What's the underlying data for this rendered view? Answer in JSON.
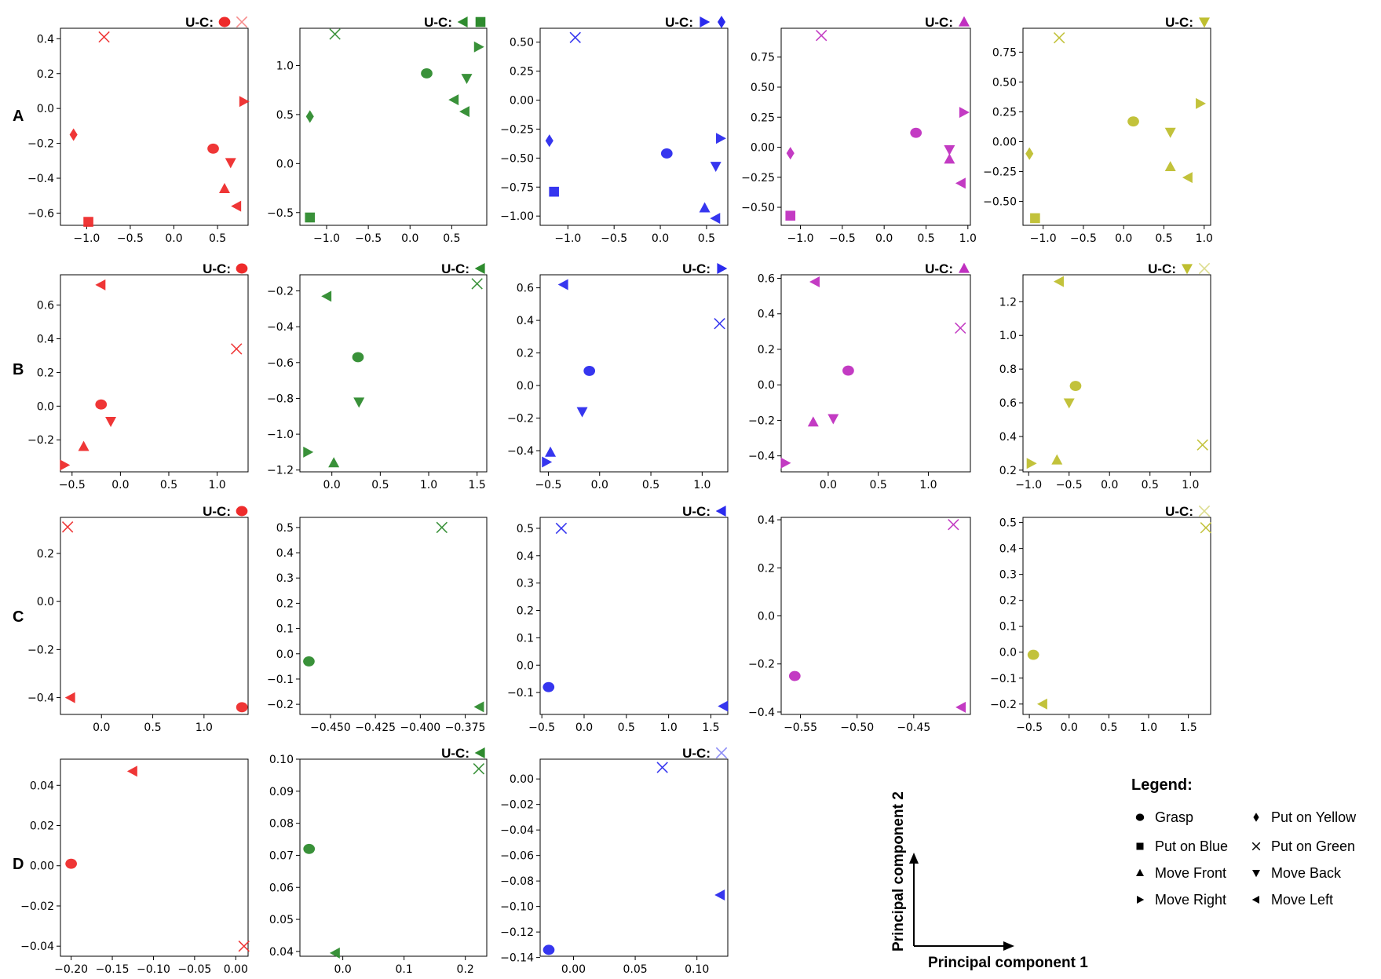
{
  "row_labels": [
    "A",
    "B",
    "C",
    "D"
  ],
  "uc_label": "U-C:",
  "colors": {
    "red": "#ee2b2b",
    "green": "#2e8b2e",
    "blue": "#2b2bee",
    "magenta": "#c030c0",
    "yellow": "#bfbf30"
  },
  "legend": {
    "title": "Legend:",
    "items": [
      {
        "marker": "circle",
        "label": "Grasp"
      },
      {
        "marker": "diamond",
        "label": "Put on Yellow"
      },
      {
        "marker": "square",
        "label": "Put on Blue"
      },
      {
        "marker": "x",
        "label": "Put on Green"
      },
      {
        "marker": "triangle-up",
        "label": "Move Front"
      },
      {
        "marker": "triangle-down",
        "label": "Move Back"
      },
      {
        "marker": "triangle-right",
        "label": "Move Right"
      },
      {
        "marker": "triangle-left",
        "label": "Move Left"
      }
    ]
  },
  "axes_guide": {
    "xlabel": "Principal component 1",
    "ylabel": "Principal component 2"
  },
  "chart_data": [
    {
      "row": "A",
      "col": 1,
      "type": "scatter",
      "color": "red",
      "xticks": [
        -1.0,
        -0.5,
        0.0,
        0.5
      ],
      "yticks": [
        -0.6,
        -0.4,
        -0.2,
        0.0,
        0.2,
        0.4
      ],
      "xlim": [
        -1.3,
        0.85
      ],
      "ylim": [
        -0.67,
        0.46
      ],
      "uc": [
        {
          "marker": "circle"
        },
        {
          "marker": "x",
          "faded": true
        }
      ],
      "points": [
        {
          "marker": "x",
          "x": -0.8,
          "y": 0.41
        },
        {
          "marker": "triangle-right",
          "x": 0.8,
          "y": 0.04
        },
        {
          "marker": "diamond",
          "x": -1.15,
          "y": -0.15
        },
        {
          "marker": "circle",
          "x": 0.45,
          "y": -0.23
        },
        {
          "marker": "triangle-down",
          "x": 0.65,
          "y": -0.31
        },
        {
          "marker": "triangle-up",
          "x": 0.58,
          "y": -0.46
        },
        {
          "marker": "triangle-left",
          "x": 0.72,
          "y": -0.56
        },
        {
          "marker": "square",
          "x": -0.98,
          "y": -0.65
        }
      ]
    },
    {
      "row": "A",
      "col": 2,
      "type": "scatter",
      "color": "green",
      "xticks": [
        -1.0,
        -0.5,
        0.0,
        0.5
      ],
      "yticks": [
        -0.5,
        0.0,
        0.5,
        1.0
      ],
      "xlim": [
        -1.32,
        0.92
      ],
      "ylim": [
        -0.63,
        1.38
      ],
      "uc": [
        {
          "marker": "triangle-left"
        },
        {
          "marker": "square"
        }
      ],
      "points": [
        {
          "marker": "x",
          "x": -0.9,
          "y": 1.32
        },
        {
          "marker": "triangle-right",
          "x": 0.82,
          "y": 1.19
        },
        {
          "marker": "circle",
          "x": 0.2,
          "y": 0.92
        },
        {
          "marker": "triangle-down",
          "x": 0.68,
          "y": 0.87
        },
        {
          "marker": "triangle-left",
          "x": 0.53,
          "y": 0.65
        },
        {
          "marker": "triangle-left",
          "x": 0.66,
          "y": 0.53
        },
        {
          "marker": "diamond",
          "x": -1.2,
          "y": 0.48
        },
        {
          "marker": "square",
          "x": -1.2,
          "y": -0.55
        }
      ]
    },
    {
      "row": "A",
      "col": 3,
      "type": "scatter",
      "color": "blue",
      "xticks": [
        -1.0,
        -0.5,
        0.0,
        0.5
      ],
      "yticks": [
        -1.0,
        -0.75,
        -0.5,
        -0.25,
        0.0,
        0.25,
        0.5
      ],
      "xlim": [
        -1.3,
        0.73
      ],
      "ylim": [
        -1.08,
        0.62
      ],
      "uc": [
        {
          "marker": "triangle-right"
        },
        {
          "marker": "diamond"
        }
      ],
      "points": [
        {
          "marker": "x",
          "x": -0.92,
          "y": 0.54
        },
        {
          "marker": "diamond",
          "x": -1.2,
          "y": -0.35
        },
        {
          "marker": "triangle-right",
          "x": 0.65,
          "y": -0.33
        },
        {
          "marker": "circle",
          "x": 0.07,
          "y": -0.46
        },
        {
          "marker": "triangle-down",
          "x": 0.6,
          "y": -0.57
        },
        {
          "marker": "square",
          "x": -1.15,
          "y": -0.79
        },
        {
          "marker": "triangle-up",
          "x": 0.48,
          "y": -0.93
        },
        {
          "marker": "triangle-left",
          "x": 0.6,
          "y": -1.02
        }
      ]
    },
    {
      "row": "A",
      "col": 4,
      "type": "scatter",
      "color": "magenta",
      "xticks": [
        -1.0,
        -0.5,
        0.0,
        0.5,
        1.0
      ],
      "yticks": [
        -0.5,
        -0.25,
        0.0,
        0.25,
        0.5,
        0.75
      ],
      "xlim": [
        -1.23,
        1.03
      ],
      "ylim": [
        -0.65,
        0.99
      ],
      "uc": [
        {
          "marker": "triangle-up"
        }
      ],
      "points": [
        {
          "marker": "x",
          "x": -0.75,
          "y": 0.93
        },
        {
          "marker": "triangle-right",
          "x": 0.95,
          "y": 0.29
        },
        {
          "marker": "circle",
          "x": 0.38,
          "y": 0.12
        },
        {
          "marker": "triangle-down",
          "x": 0.78,
          "y": -0.02
        },
        {
          "marker": "triangle-up",
          "x": 0.78,
          "y": -0.1
        },
        {
          "marker": "diamond",
          "x": -1.12,
          "y": -0.05
        },
        {
          "marker": "triangle-left",
          "x": 0.92,
          "y": -0.3
        },
        {
          "marker": "square",
          "x": -1.12,
          "y": -0.57
        }
      ]
    },
    {
      "row": "A",
      "col": 5,
      "type": "scatter",
      "color": "yellow",
      "xticks": [
        -1.0,
        -0.5,
        0.0,
        0.5,
        1.0
      ],
      "yticks": [
        -0.5,
        -0.25,
        0.0,
        0.25,
        0.5,
        0.75
      ],
      "xlim": [
        -1.25,
        1.08
      ],
      "ylim": [
        -0.7,
        0.95
      ],
      "uc": [
        {
          "marker": "triangle-down"
        }
      ],
      "points": [
        {
          "marker": "x",
          "x": -0.8,
          "y": 0.87
        },
        {
          "marker": "triangle-right",
          "x": 0.95,
          "y": 0.32
        },
        {
          "marker": "circle",
          "x": 0.12,
          "y": 0.17
        },
        {
          "marker": "triangle-down",
          "x": 0.58,
          "y": 0.08
        },
        {
          "marker": "diamond",
          "x": -1.17,
          "y": -0.1
        },
        {
          "marker": "triangle-up",
          "x": 0.58,
          "y": -0.21
        },
        {
          "marker": "triangle-left",
          "x": 0.8,
          "y": -0.3
        },
        {
          "marker": "square",
          "x": -1.1,
          "y": -0.64
        }
      ]
    },
    {
      "row": "B",
      "col": 1,
      "type": "scatter",
      "color": "red",
      "xticks": [
        -0.5,
        0.0,
        0.5,
        1.0
      ],
      "yticks": [
        -0.2,
        0.0,
        0.2,
        0.4,
        0.6
      ],
      "xlim": [
        -0.62,
        1.32
      ],
      "ylim": [
        -0.39,
        0.78
      ],
      "uc": [
        {
          "marker": "circle"
        }
      ],
      "points": [
        {
          "marker": "triangle-left",
          "x": -0.2,
          "y": 0.72
        },
        {
          "marker": "x",
          "x": 1.2,
          "y": 0.34
        },
        {
          "marker": "circle",
          "x": -0.2,
          "y": 0.01
        },
        {
          "marker": "triangle-down",
          "x": -0.1,
          "y": -0.09
        },
        {
          "marker": "triangle-up",
          "x": -0.38,
          "y": -0.24
        },
        {
          "marker": "triangle-right",
          "x": -0.58,
          "y": -0.35
        }
      ]
    },
    {
      "row": "B",
      "col": 2,
      "type": "scatter",
      "color": "green",
      "xticks": [
        0.0,
        0.5,
        1.0,
        1.5
      ],
      "yticks": [
        -1.2,
        -1.0,
        -0.8,
        -0.6,
        -0.4,
        -0.2
      ],
      "xlim": [
        -0.33,
        1.6
      ],
      "ylim": [
        -1.21,
        -0.11
      ],
      "uc": [
        {
          "marker": "triangle-left"
        }
      ],
      "points": [
        {
          "marker": "x",
          "x": 1.5,
          "y": -0.16
        },
        {
          "marker": "triangle-left",
          "x": -0.05,
          "y": -0.23
        },
        {
          "marker": "circle",
          "x": 0.27,
          "y": -0.57
        },
        {
          "marker": "triangle-down",
          "x": 0.28,
          "y": -0.82
        },
        {
          "marker": "triangle-right",
          "x": -0.25,
          "y": -1.1
        },
        {
          "marker": "triangle-up",
          "x": 0.02,
          "y": -1.16
        }
      ]
    },
    {
      "row": "B",
      "col": 3,
      "type": "scatter",
      "color": "blue",
      "xticks": [
        -0.5,
        0.0,
        0.5,
        1.0
      ],
      "yticks": [
        -0.4,
        -0.2,
        0.0,
        0.2,
        0.4,
        0.6
      ],
      "xlim": [
        -0.58,
        1.25
      ],
      "ylim": [
        -0.53,
        0.68
      ],
      "uc": [
        {
          "marker": "triangle-right"
        }
      ],
      "points": [
        {
          "marker": "triangle-left",
          "x": -0.35,
          "y": 0.62
        },
        {
          "marker": "x",
          "x": 1.17,
          "y": 0.38
        },
        {
          "marker": "circle",
          "x": -0.1,
          "y": 0.09
        },
        {
          "marker": "triangle-down",
          "x": -0.17,
          "y": -0.16
        },
        {
          "marker": "triangle-up",
          "x": -0.48,
          "y": -0.41
        },
        {
          "marker": "triangle-right",
          "x": -0.52,
          "y": -0.47
        }
      ]
    },
    {
      "row": "B",
      "col": 4,
      "type": "scatter",
      "color": "magenta",
      "xticks": [
        0.0,
        0.5,
        1.0
      ],
      "yticks": [
        -0.4,
        -0.2,
        0.0,
        0.2,
        0.4,
        0.6
      ],
      "xlim": [
        -0.47,
        1.42
      ],
      "ylim": [
        -0.49,
        0.62
      ],
      "uc": [
        {
          "marker": "triangle-up"
        }
      ],
      "points": [
        {
          "marker": "triangle-left",
          "x": -0.13,
          "y": 0.58
        },
        {
          "marker": "x",
          "x": 1.32,
          "y": 0.32
        },
        {
          "marker": "circle",
          "x": 0.2,
          "y": 0.08
        },
        {
          "marker": "triangle-up",
          "x": -0.15,
          "y": -0.21
        },
        {
          "marker": "triangle-down",
          "x": 0.05,
          "y": -0.19
        },
        {
          "marker": "triangle-right",
          "x": -0.43,
          "y": -0.44
        }
      ]
    },
    {
      "row": "B",
      "col": 5,
      "type": "scatter",
      "color": "yellow",
      "xticks": [
        -1.0,
        -0.5,
        0.0,
        0.5,
        1.0
      ],
      "yticks": [
        0.2,
        0.4,
        0.6,
        0.8,
        1.0,
        1.2
      ],
      "xlim": [
        -1.07,
        1.25
      ],
      "ylim": [
        0.19,
        1.36
      ],
      "uc": [
        {
          "marker": "triangle-down"
        },
        {
          "marker": "x",
          "faded": true
        }
      ],
      "points": [
        {
          "marker": "triangle-left",
          "x": -0.62,
          "y": 1.32
        },
        {
          "marker": "circle",
          "x": -0.42,
          "y": 0.7
        },
        {
          "marker": "triangle-down",
          "x": -0.5,
          "y": 0.6
        },
        {
          "marker": "x",
          "x": 1.15,
          "y": 0.35
        },
        {
          "marker": "triangle-up",
          "x": -0.65,
          "y": 0.26
        },
        {
          "marker": "triangle-right",
          "x": -0.97,
          "y": 0.24
        }
      ]
    },
    {
      "row": "C",
      "col": 1,
      "type": "scatter",
      "color": "red",
      "xticks": [
        0.0,
        0.5,
        1.0
      ],
      "yticks": [
        -0.4,
        -0.2,
        0.0,
        0.2
      ],
      "xlim": [
        -0.4,
        1.43
      ],
      "ylim": [
        -0.47,
        0.35
      ],
      "uc": [
        {
          "marker": "circle"
        }
      ],
      "points": [
        {
          "marker": "x",
          "x": -0.33,
          "y": 0.31
        },
        {
          "marker": "triangle-left",
          "x": -0.3,
          "y": -0.4
        },
        {
          "marker": "circle",
          "x": 1.37,
          "y": -0.44
        }
      ]
    },
    {
      "row": "C",
      "col": 2,
      "type": "scatter",
      "color": "green",
      "xticks": [
        -0.45,
        -0.425,
        -0.4,
        -0.375
      ],
      "yticks": [
        -0.2,
        -0.1,
        0.0,
        0.1,
        0.2,
        0.3,
        0.4,
        0.5
      ],
      "xlim": [
        -0.467,
        -0.363
      ],
      "ylim": [
        -0.24,
        0.54
      ],
      "uc": [],
      "points": [
        {
          "marker": "x",
          "x": -0.388,
          "y": 0.5
        },
        {
          "marker": "circle",
          "x": -0.462,
          "y": -0.03
        },
        {
          "marker": "triangle-left",
          "x": -0.367,
          "y": -0.21
        }
      ]
    },
    {
      "row": "C",
      "col": 3,
      "type": "scatter",
      "color": "blue",
      "xticks": [
        -0.5,
        0.0,
        0.5,
        1.0,
        1.5
      ],
      "yticks": [
        -0.1,
        0.0,
        0.1,
        0.2,
        0.3,
        0.4,
        0.5
      ],
      "xlim": [
        -0.52,
        1.7
      ],
      "ylim": [
        -0.18,
        0.54
      ],
      "uc": [
        {
          "marker": "triangle-left"
        }
      ],
      "points": [
        {
          "marker": "x",
          "x": -0.27,
          "y": 0.5
        },
        {
          "marker": "circle",
          "x": -0.42,
          "y": -0.08
        },
        {
          "marker": "triangle-left",
          "x": 1.65,
          "y": -0.15
        }
      ]
    },
    {
      "row": "C",
      "col": 4,
      "type": "scatter",
      "color": "magenta",
      "xticks": [
        -0.55,
        -0.5,
        -0.45
      ],
      "yticks": [
        -0.4,
        -0.2,
        0.0,
        0.2,
        0.4
      ],
      "xlim": [
        -0.567,
        -0.4
      ],
      "ylim": [
        -0.41,
        0.41
      ],
      "uc": [],
      "points": [
        {
          "marker": "x",
          "x": -0.415,
          "y": 0.38
        },
        {
          "marker": "circle",
          "x": -0.555,
          "y": -0.25
        },
        {
          "marker": "triangle-left",
          "x": -0.408,
          "y": -0.38
        }
      ]
    },
    {
      "row": "C",
      "col": 5,
      "type": "scatter",
      "color": "yellow",
      "xticks": [
        -0.5,
        0.0,
        0.5,
        1.0,
        1.5
      ],
      "yticks": [
        -0.2,
        -0.1,
        0.0,
        0.1,
        0.2,
        0.3,
        0.4,
        0.5
      ],
      "xlim": [
        -0.58,
        1.78
      ],
      "ylim": [
        -0.24,
        0.52
      ],
      "uc": [
        {
          "marker": "x",
          "faded": true
        }
      ],
      "points": [
        {
          "marker": "x",
          "x": 1.72,
          "y": 0.48
        },
        {
          "marker": "circle",
          "x": -0.45,
          "y": -0.01
        },
        {
          "marker": "triangle-left",
          "x": -0.33,
          "y": -0.2
        }
      ]
    },
    {
      "row": "D",
      "col": 1,
      "type": "scatter",
      "color": "red",
      "xticks": [
        -0.2,
        -0.15,
        -0.1,
        -0.05,
        0.0
      ],
      "yticks": [
        -0.04,
        -0.02,
        0.0,
        0.02,
        0.04
      ],
      "xlim": [
        -0.213,
        0.015
      ],
      "ylim": [
        -0.045,
        0.053
      ],
      "uc": [],
      "points": [
        {
          "marker": "triangle-left",
          "x": -0.125,
          "y": 0.047
        },
        {
          "marker": "circle",
          "x": -0.2,
          "y": 0.001
        },
        {
          "marker": "x",
          "x": 0.01,
          "y": -0.04
        }
      ]
    },
    {
      "row": "D",
      "col": 2,
      "type": "scatter",
      "color": "green",
      "xticks": [
        0.0,
        0.1,
        0.2
      ],
      "yticks": [
        0.04,
        0.05,
        0.06,
        0.07,
        0.08,
        0.09,
        0.1
      ],
      "xlim": [
        -0.07,
        0.235
      ],
      "ylim": [
        0.0385,
        0.1
      ],
      "uc": [
        {
          "marker": "triangle-left"
        }
      ],
      "points": [
        {
          "marker": "x",
          "x": 0.222,
          "y": 0.097
        },
        {
          "marker": "circle",
          "x": -0.055,
          "y": 0.072
        },
        {
          "marker": "triangle-left",
          "x": -0.012,
          "y": 0.0395
        }
      ]
    },
    {
      "row": "D",
      "col": 3,
      "type": "scatter",
      "color": "blue",
      "xticks": [
        0.0,
        0.05,
        0.1
      ],
      "yticks": [
        -0.14,
        -0.12,
        -0.1,
        -0.08,
        -0.06,
        -0.04,
        -0.02,
        0.0
      ],
      "xlim": [
        -0.027,
        0.125
      ],
      "ylim": [
        -0.139,
        0.0155
      ],
      "uc": [
        {
          "marker": "x",
          "faded": true
        }
      ],
      "points": [
        {
          "marker": "x",
          "x": 0.072,
          "y": 0.009
        },
        {
          "marker": "triangle-left",
          "x": 0.119,
          "y": -0.091
        },
        {
          "marker": "circle",
          "x": -0.02,
          "y": -0.134
        }
      ]
    }
  ]
}
